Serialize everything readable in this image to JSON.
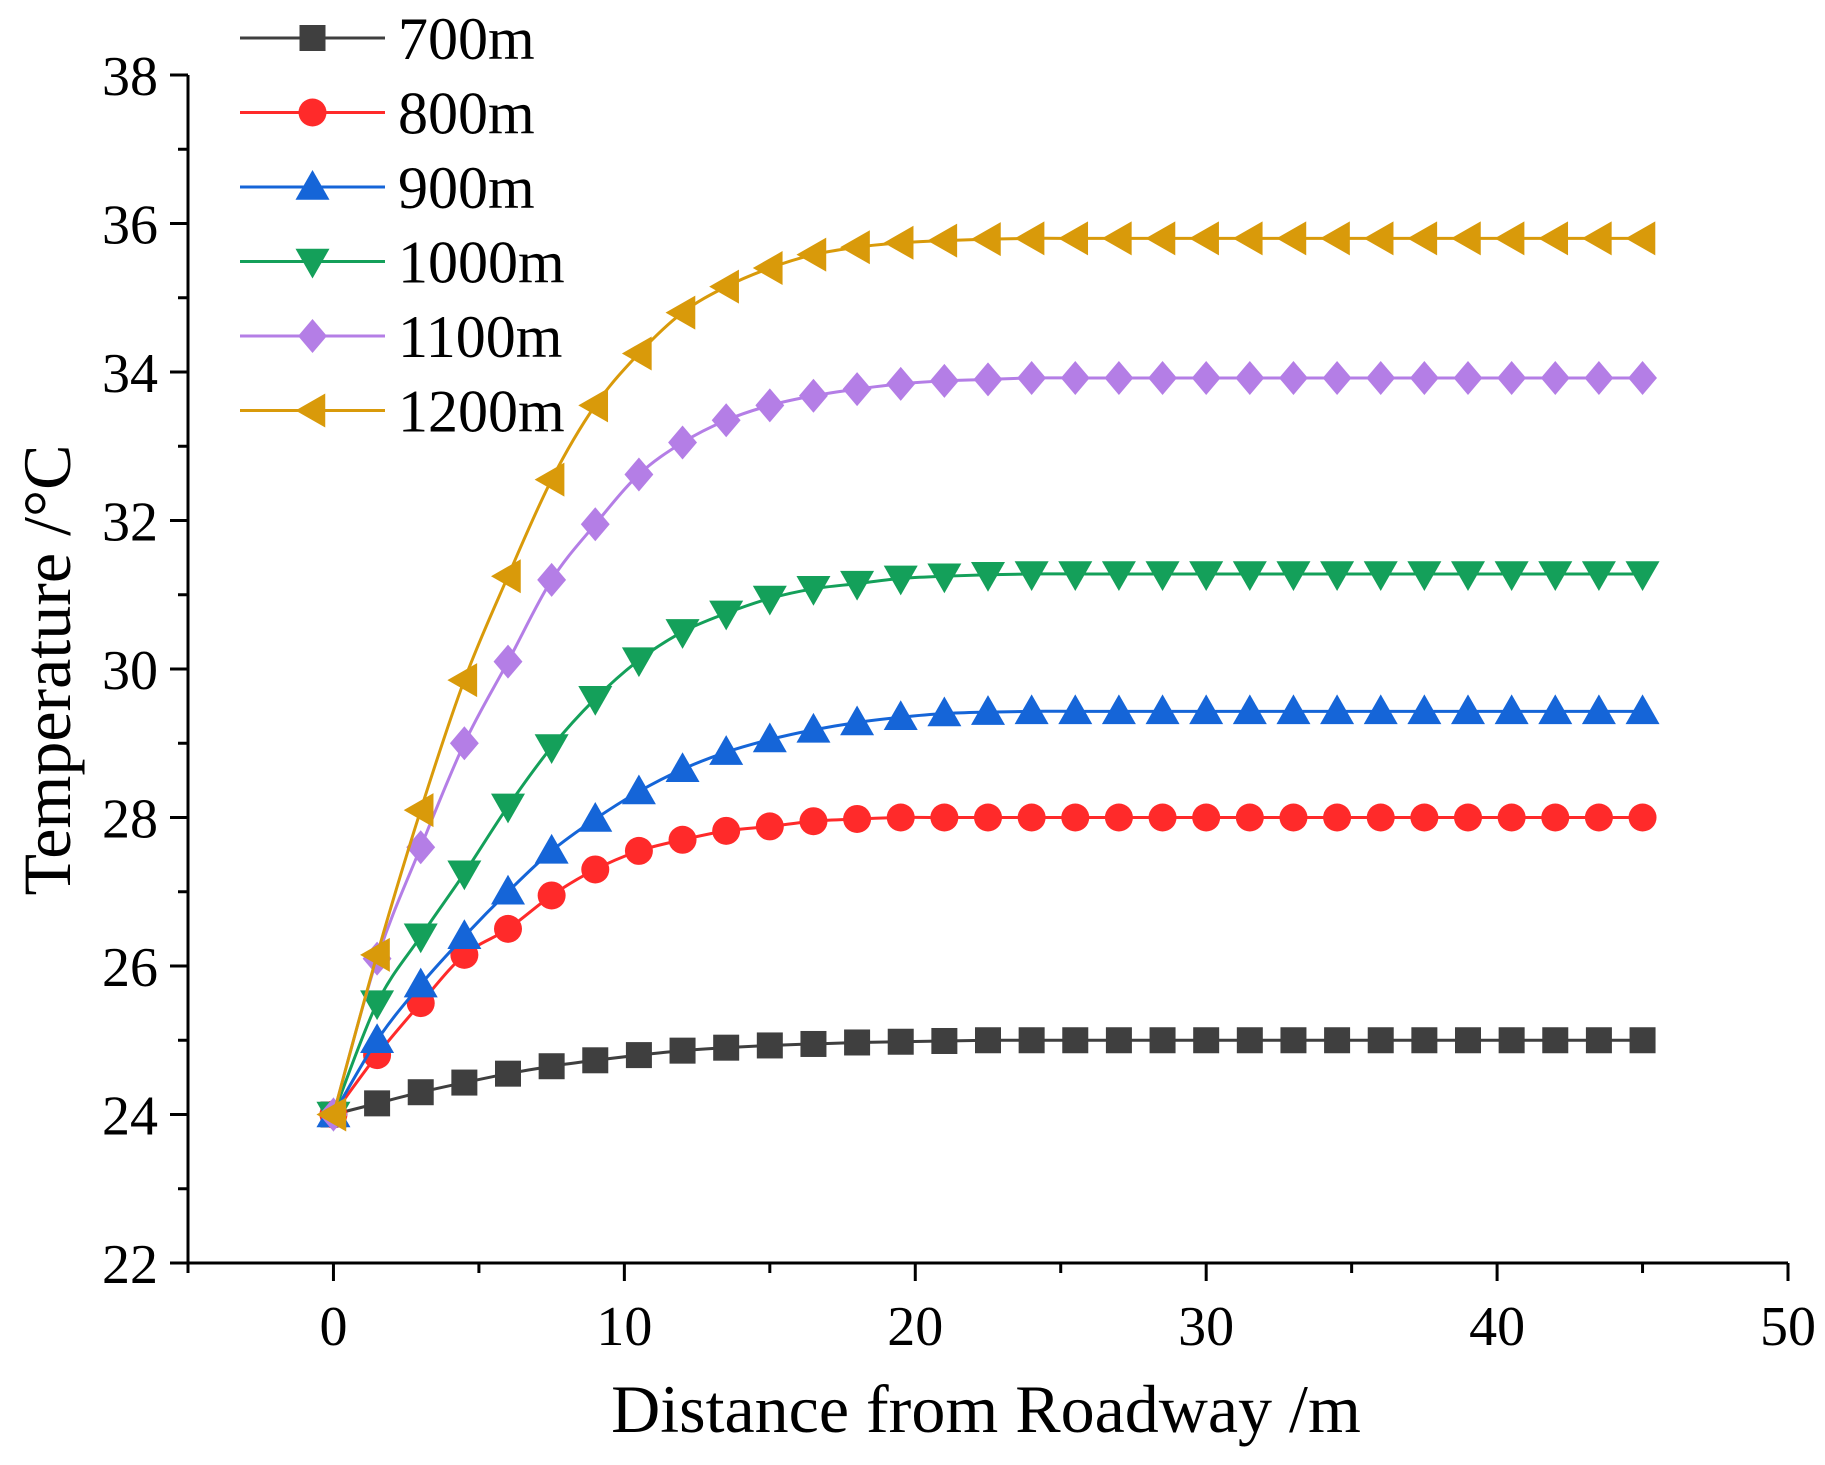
{
  "chart_data": {
    "type": "line",
    "title": "",
    "xlabel": "Distance from Roadway /m",
    "ylabel": "Temperature /°C",
    "xlim": [
      -5,
      50
    ],
    "ylim": [
      22,
      38
    ],
    "xticks": [
      0,
      10,
      20,
      30,
      40,
      50
    ],
    "yticks": [
      22,
      24,
      26,
      28,
      30,
      32,
      34,
      36,
      38
    ],
    "x": [
      0,
      1.5,
      3,
      4.5,
      6,
      7.5,
      9,
      10.5,
      12,
      13.5,
      15,
      16.5,
      18,
      19.5,
      21,
      22.5,
      24,
      25.5,
      27,
      28.5,
      30,
      31.5,
      33,
      34.5,
      36,
      37.5,
      39,
      40.5,
      42,
      43.5,
      45
    ],
    "legend_position": "top-left",
    "series": [
      {
        "name": "700m",
        "color": "#3f3f3f",
        "marker": "square",
        "values": [
          24.0,
          24.15,
          24.3,
          24.43,
          24.55,
          24.65,
          24.73,
          24.8,
          24.86,
          24.9,
          24.93,
          24.95,
          24.97,
          24.98,
          24.99,
          25.0,
          25.0,
          25.0,
          25.0,
          25.0,
          25.0,
          25.0,
          25.0,
          25.0,
          25.0,
          25.0,
          25.0,
          25.0,
          25.0,
          25.0,
          25.0
        ]
      },
      {
        "name": "800m",
        "color": "#ff2a2a",
        "marker": "circle",
        "values": [
          24.0,
          24.8,
          25.5,
          26.15,
          26.5,
          26.95,
          27.3,
          27.55,
          27.7,
          27.82,
          27.88,
          27.95,
          27.98,
          28.0,
          28.0,
          28.0,
          28.0,
          28.0,
          28.0,
          28.0,
          28.0,
          28.0,
          28.0,
          28.0,
          28.0,
          28.0,
          28.0,
          28.0,
          28.0,
          28.0,
          28.0
        ]
      },
      {
        "name": "900m",
        "color": "#1565d8",
        "marker": "triangle-up",
        "values": [
          24.0,
          25.0,
          25.75,
          26.4,
          27.0,
          27.55,
          27.98,
          28.35,
          28.65,
          28.88,
          29.05,
          29.18,
          29.28,
          29.35,
          29.4,
          29.42,
          29.43,
          29.43,
          29.43,
          29.43,
          29.43,
          29.43,
          29.43,
          29.43,
          29.43,
          29.43,
          29.43,
          29.43,
          29.43,
          29.43,
          29.43
        ]
      },
      {
        "name": "1000m",
        "color": "#14a05a",
        "marker": "triangle-down",
        "values": [
          24.0,
          25.5,
          26.4,
          27.25,
          28.15,
          28.95,
          29.6,
          30.12,
          30.5,
          30.75,
          30.95,
          31.08,
          31.15,
          31.22,
          31.25,
          31.27,
          31.28,
          31.28,
          31.28,
          31.28,
          31.28,
          31.28,
          31.28,
          31.28,
          31.28,
          31.28,
          31.28,
          31.28,
          31.28,
          31.28,
          31.28
        ]
      },
      {
        "name": "1100m",
        "color": "#b47ee6",
        "marker": "diamond",
        "values": [
          24.0,
          26.1,
          27.6,
          29.0,
          30.1,
          31.2,
          31.95,
          32.62,
          33.05,
          33.35,
          33.55,
          33.68,
          33.77,
          33.84,
          33.88,
          33.9,
          33.92,
          33.92,
          33.92,
          33.92,
          33.92,
          33.92,
          33.92,
          33.92,
          33.92,
          33.92,
          33.92,
          33.92,
          33.92,
          33.92,
          33.92
        ]
      },
      {
        "name": "1200m",
        "color": "#d99a0a",
        "marker": "triangle-left",
        "values": [
          24.0,
          26.15,
          28.1,
          29.85,
          31.25,
          32.55,
          33.55,
          34.25,
          34.8,
          35.15,
          35.4,
          35.58,
          35.68,
          35.74,
          35.77,
          35.79,
          35.8,
          35.8,
          35.8,
          35.8,
          35.8,
          35.8,
          35.8,
          35.8,
          35.8,
          35.8,
          35.8,
          35.8,
          35.8,
          35.8,
          35.8
        ]
      }
    ]
  }
}
